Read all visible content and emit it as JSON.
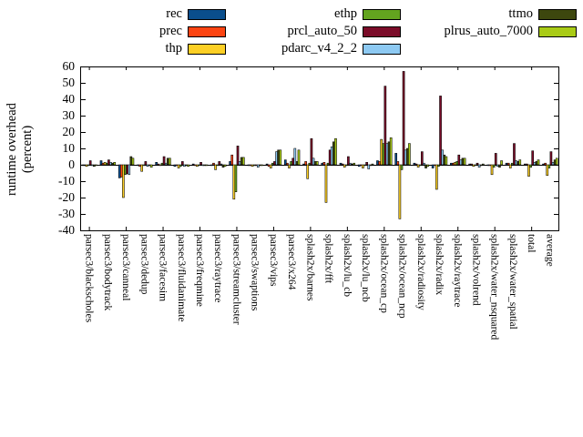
{
  "figure": {
    "background": "#ffffff"
  },
  "legend": {
    "items": [
      {
        "label": "rec",
        "color": "#0a4e8c"
      },
      {
        "label": "prec",
        "color": "#fc4412"
      },
      {
        "label": "thp",
        "color": "#fccf25"
      },
      {
        "label": "ethp",
        "color": "#63a41f"
      },
      {
        "label": "prcl_auto_50",
        "color": "#7b0c29"
      },
      {
        "label": "pdarc_v4_2_2",
        "color": "#8dc9f2"
      },
      {
        "label": "ttmo",
        "color": "#3d470e"
      },
      {
        "label": "plrus_auto_7000",
        "color": "#a9cb16"
      }
    ]
  },
  "chart_data": {
    "type": "bar",
    "title": "",
    "xlabel": "",
    "ylabel": "runtime overhead (percent)",
    "ylabel_line1": "runtime overhead",
    "ylabel_line2": "(percent)",
    "ylim": [
      -40,
      60
    ],
    "ytick_step": 10,
    "grid": false,
    "legend_position": "top",
    "categories": [
      "parsec3/blackscholes",
      "parsec3/bodytrack",
      "parsec3/canneal",
      "parsec3/dedup",
      "parsec3/facesim",
      "parsec3/fluidanimate",
      "parsec3/freqmine",
      "parsec3/raytrace",
      "parsec3/streamcluster",
      "parsec3/swaptions",
      "parsec3/vips",
      "parsec3/x264",
      "splash2x/barnes",
      "splash2x/fft",
      "splash2x/lu_cb",
      "splash2x/lu_ncb",
      "splash2x/ocean_cp",
      "splash2x/ocean_ncp",
      "splash2x/radiosity",
      "splash2x/radix",
      "splash2x/raytrace",
      "splash2x/volrend",
      "splash2x/water_nsquared",
      "splash2x/water_spatial",
      "total",
      "average"
    ],
    "series": [
      {
        "name": "rec",
        "color": "#0a4e8c",
        "values": [
          -0.5,
          2.5,
          -8,
          -0.5,
          1.5,
          -1,
          0.5,
          -0.5,
          2,
          -0.5,
          0.5,
          3,
          0.5,
          1,
          1,
          -1,
          2.5,
          7,
          1,
          -2,
          1,
          0.5,
          -0.5,
          1,
          0.5,
          0.5
        ]
      },
      {
        "name": "prec",
        "color": "#fc4412",
        "values": [
          -0.5,
          1,
          -7.5,
          -1,
          0.5,
          -0.5,
          -0.5,
          1,
          6,
          -0.5,
          -1,
          1,
          2,
          1.5,
          0.5,
          -0.5,
          2,
          2,
          0.5,
          -0.5,
          1,
          0.5,
          -0.5,
          1,
          0.5,
          1
        ]
      },
      {
        "name": "thp",
        "color": "#fccf25",
        "values": [
          -1,
          1.5,
          -20,
          -4,
          -0.5,
          -2,
          -1,
          -3,
          -21,
          -1,
          -2,
          -2,
          -8.5,
          -23,
          -1.5,
          -2,
          15.5,
          -33,
          -1.5,
          -15,
          1.5,
          -1,
          -6,
          -2,
          -7,
          -6.5
        ]
      },
      {
        "name": "ethp",
        "color": "#63a41f",
        "values": [
          -0.5,
          1,
          -6,
          -0.5,
          1,
          -1,
          -0.5,
          -0.5,
          -16.5,
          -0.5,
          1,
          2,
          1,
          1,
          -0.5,
          -0.5,
          13,
          -3,
          -0.5,
          -1,
          2,
          -0.5,
          -1.5,
          1,
          -1.5,
          -2
        ]
      },
      {
        "name": "prcl_auto_50",
        "color": "#7b0c29",
        "values": [
          2.5,
          3,
          -5.5,
          2,
          5,
          2,
          1.5,
          2,
          11.5,
          -0.5,
          2,
          4,
          16,
          9,
          5,
          1.5,
          48,
          57,
          8,
          42,
          6,
          1,
          7,
          13,
          8.5,
          8
        ]
      },
      {
        "name": "pdarc_v4_2_2",
        "color": "#8dc9f2",
        "values": [
          -0.5,
          1.5,
          -6,
          -1,
          1,
          -1,
          -0.5,
          0.5,
          2,
          -1.5,
          8,
          10,
          4,
          11,
          1,
          -2.5,
          13,
          9,
          1,
          9,
          3,
          -1.5,
          -1,
          2.5,
          1.5,
          1.5
        ]
      },
      {
        "name": "ttmo",
        "color": "#3d470e",
        "values": [
          -1,
          1,
          5,
          -0.5,
          4,
          -0.5,
          -0.5,
          -1.5,
          4.5,
          -0.5,
          9,
          2,
          2,
          14,
          0.5,
          -0.5,
          14,
          10,
          -2,
          6,
          4,
          -0.5,
          -1.5,
          2,
          2,
          3
        ]
      },
      {
        "name": "plrus_auto_7000",
        "color": "#a9cb16",
        "values": [
          -0.5,
          1.5,
          4,
          -1.5,
          4,
          -1,
          -0.5,
          -1,
          4.5,
          -0.5,
          9,
          9,
          2,
          16,
          1,
          0.5,
          16.5,
          13,
          -1,
          5,
          4,
          0.5,
          2.5,
          3,
          3,
          4
        ]
      }
    ]
  }
}
